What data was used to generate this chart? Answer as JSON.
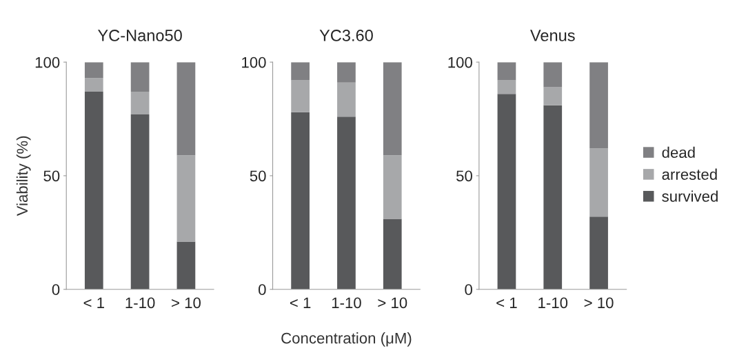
{
  "chart_data": [
    {
      "type": "bar",
      "stacked": true,
      "title": "YC-Nano50",
      "ylabel": "Viability (%)",
      "categories": [
        "< 1",
        "1-10",
        "> 10"
      ],
      "ylim": [
        0,
        100
      ],
      "yticks": [
        0,
        50,
        100
      ],
      "grid": false,
      "legend": false,
      "series": [
        {
          "color": "#58595b",
          "values": [
            87,
            77,
            21
          ]
        },
        {
          "color": "#a7a8aa",
          "values": [
            6,
            10,
            38
          ]
        },
        {
          "color": "#808083",
          "values": [
            7,
            13,
            41
          ]
        }
      ]
    },
    {
      "type": "bar",
      "stacked": true,
      "title": "YC3.60",
      "xlabel": "Concentration (μM)",
      "categories": [
        "< 1",
        "1-10",
        "> 10"
      ],
      "ylim": [
        0,
        100
      ],
      "yticks": [
        0,
        50,
        100
      ],
      "grid": false,
      "legend": false,
      "series": [
        {
          "color": "#58595b",
          "values": [
            78,
            76,
            31
          ]
        },
        {
          "color": "#a7a8aa",
          "values": [
            14,
            15,
            28
          ]
        },
        {
          "color": "#808083",
          "values": [
            8,
            9,
            41
          ]
        }
      ]
    },
    {
      "type": "bar",
      "stacked": true,
      "title": "Venus",
      "categories": [
        "< 1",
        "1-10",
        "> 10"
      ],
      "ylim": [
        0,
        100
      ],
      "yticks": [
        0,
        50,
        100
      ],
      "grid": false,
      "legend": "right",
      "series": [
        {
          "name": "survived",
          "color": "#58595b",
          "values": [
            86,
            81,
            32
          ]
        },
        {
          "name": "arrested",
          "color": "#a7a8aa",
          "values": [
            6,
            8,
            30
          ]
        },
        {
          "name": "dead",
          "color": "#808083",
          "values": [
            8,
            11,
            38
          ]
        }
      ]
    }
  ]
}
